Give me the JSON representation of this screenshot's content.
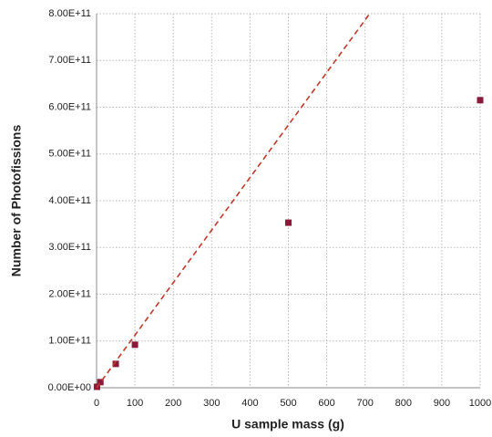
{
  "chart_data": {
    "type": "scatter",
    "x_label": "U sample mass (g)",
    "y_label": "Number of Photofissions",
    "series": [
      {
        "mode": "markers",
        "color": "#8b1a3a",
        "x": [
          1,
          10,
          50,
          100,
          500,
          1000
        ],
        "values": [
          2000000000,
          12000000000,
          51000000000,
          92000000000,
          353000000000,
          615000000000
        ]
      },
      {
        "mode": "dashed-line",
        "color": "#c0392b",
        "x": [
          0,
          712
        ],
        "values": [
          0,
          800000000000
        ]
      }
    ],
    "xlim": [
      0,
      1000
    ],
    "xticks": [
      0,
      100,
      200,
      300,
      400,
      500,
      600,
      700,
      800,
      900,
      1000
    ],
    "ylim": [
      0,
      800000000000
    ],
    "yticks": [
      {
        "value": 0,
        "label": "0.00E+00"
      },
      {
        "value": 100000000000,
        "label": "1.00E+11"
      },
      {
        "value": 200000000000,
        "label": "2.00E+11"
      },
      {
        "value": 300000000000,
        "label": "3.00E+11"
      },
      {
        "value": 400000000000,
        "label": "4.00E+11"
      },
      {
        "value": 500000000000,
        "label": "5.00E+11"
      },
      {
        "value": 600000000000,
        "label": "6.00E+11"
      },
      {
        "value": 700000000000,
        "label": "7.00E+11"
      },
      {
        "value": 800000000000,
        "label": "8.00E+11"
      }
    ],
    "grid": true
  }
}
